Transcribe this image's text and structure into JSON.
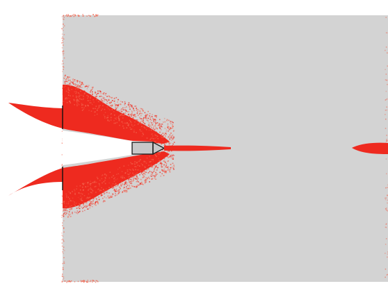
{
  "colors": {
    "background": "#ffffff",
    "plate": "#d3d3d3",
    "damage": "#ee2a1f",
    "damage_light": "#f4654f",
    "projectile_fill": "#c8c8c8",
    "outline": "#222222"
  },
  "scene": {
    "elements": [
      "target-plate",
      "debris-cloud-upper",
      "debris-cloud-lower",
      "penetration-cavity",
      "projectile",
      "damage-streak",
      "exit-damage"
    ]
  }
}
